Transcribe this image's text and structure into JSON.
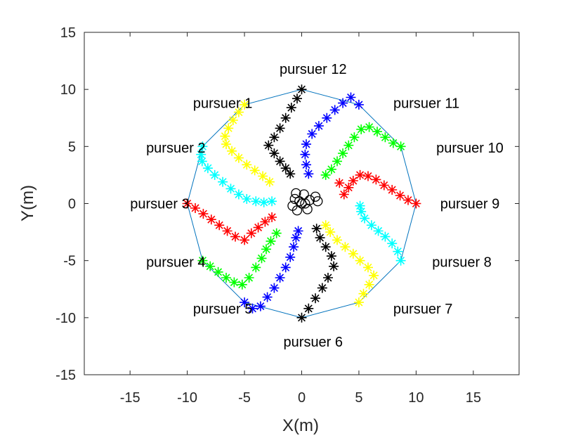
{
  "chart_data": {
    "type": "scatter",
    "title": "",
    "xlabel": "X(m)",
    "ylabel": "Y(m)",
    "xlim": [
      -19,
      19
    ],
    "ylim": [
      -15,
      15
    ],
    "xticks": [
      -15,
      -10,
      -5,
      0,
      5,
      10,
      15
    ],
    "yticks": [
      -15,
      -10,
      -5,
      0,
      5,
      10,
      15
    ],
    "xtick_labels": [
      "-15",
      "-10",
      "-5",
      "0",
      "5",
      "10",
      "15"
    ],
    "ytick_labels": [
      "-15",
      "-10",
      "-5",
      "0",
      "5",
      "10",
      "15"
    ],
    "grid": false,
    "box": true,
    "polygon": {
      "color": "#0072bd",
      "vertices": [
        [
          -5.0,
          8.66
        ],
        [
          -8.66,
          5.0
        ],
        [
          -10.0,
          0.0
        ],
        [
          -8.66,
          -5.0
        ],
        [
          -5.0,
          -8.66
        ],
        [
          0.0,
          -10.0
        ],
        [
          5.0,
          -8.66
        ],
        [
          8.66,
          -5.0
        ],
        [
          10.0,
          0.0
        ],
        [
          8.66,
          5.0
        ],
        [
          5.0,
          8.66
        ],
        [
          0.0,
          10.0
        ]
      ]
    },
    "annotations": [
      {
        "text": "pursuer 1",
        "x": -6.9,
        "y": 8.8
      },
      {
        "text": "pursuer 2",
        "x": -11.0,
        "y": 4.9
      },
      {
        "text": "pursuer 3",
        "x": -12.4,
        "y": 0.0
      },
      {
        "text": "pursuer 4",
        "x": -11.0,
        "y": -5.1
      },
      {
        "text": "pursuer 5",
        "x": -6.9,
        "y": -9.2
      },
      {
        "text": "pursuer 6",
        "x": 1.0,
        "y": -12.1
      },
      {
        "text": "pursuer 7",
        "x": 10.6,
        "y": -9.2
      },
      {
        "text": "pursuer 8",
        "x": 14.0,
        "y": -5.1
      },
      {
        "text": "pursuer 9",
        "x": 14.7,
        "y": 0.0
      },
      {
        "text": "pursuer 10",
        "x": 14.7,
        "y": 4.9
      },
      {
        "text": "pursuer 11",
        "x": 10.9,
        "y": 8.8
      },
      {
        "text": "pursuer 12",
        "x": 1.0,
        "y": 11.8
      }
    ],
    "series": [
      {
        "marker": "asterisk",
        "color": "#ffff00",
        "points": [
          [
            -5.0,
            8.66
          ],
          [
            -5.5,
            8.0
          ],
          [
            -6.0,
            7.3
          ],
          [
            -6.4,
            6.6
          ],
          [
            -6.7,
            5.9
          ],
          [
            -6.6,
            5.2
          ],
          [
            -6.1,
            4.6
          ],
          [
            -5.5,
            4.0
          ],
          [
            -4.8,
            3.4
          ],
          [
            -4.1,
            2.9
          ],
          [
            -3.4,
            2.4
          ],
          [
            -2.8,
            1.9
          ]
        ]
      },
      {
        "marker": "asterisk",
        "color": "#00ffff",
        "points": [
          [
            -8.66,
            5.0
          ],
          [
            -8.8,
            4.3
          ],
          [
            -8.7,
            3.7
          ],
          [
            -8.2,
            3.1
          ],
          [
            -7.6,
            2.5
          ],
          [
            -6.9,
            1.9
          ],
          [
            -6.2,
            1.3
          ],
          [
            -5.5,
            0.8
          ],
          [
            -4.8,
            0.4
          ],
          [
            -4.0,
            0.2
          ],
          [
            -3.3,
            0.1
          ],
          [
            -2.6,
            0.2
          ]
        ]
      },
      {
        "marker": "asterisk",
        "color": "#ff0000",
        "points": [
          [
            -10.0,
            0.0
          ],
          [
            -9.3,
            -0.4
          ],
          [
            -8.6,
            -0.9
          ],
          [
            -7.9,
            -1.4
          ],
          [
            -7.2,
            -1.9
          ],
          [
            -6.5,
            -2.4
          ],
          [
            -5.8,
            -2.9
          ],
          [
            -5.0,
            -3.2
          ],
          [
            -4.4,
            -2.6
          ],
          [
            -3.8,
            -2.1
          ],
          [
            -3.2,
            -1.6
          ],
          [
            -2.6,
            -1.2
          ]
        ]
      },
      {
        "marker": "asterisk",
        "color": "#00ff00",
        "points": [
          [
            -8.66,
            -5.0
          ],
          [
            -8.0,
            -5.5
          ],
          [
            -7.3,
            -6.0
          ],
          [
            -6.6,
            -6.5
          ],
          [
            -5.9,
            -6.9
          ],
          [
            -5.2,
            -7.1
          ],
          [
            -4.6,
            -6.5
          ],
          [
            -4.0,
            -5.6
          ],
          [
            -3.5,
            -4.8
          ],
          [
            -3.1,
            -4.0
          ],
          [
            -2.7,
            -3.3
          ],
          [
            -2.2,
            -2.6
          ]
        ]
      },
      {
        "marker": "asterisk",
        "color": "#0000ff",
        "points": [
          [
            -5.0,
            -8.66
          ],
          [
            -4.3,
            -9.2
          ],
          [
            -3.6,
            -9.0
          ],
          [
            -3.0,
            -8.2
          ],
          [
            -2.4,
            -7.4
          ],
          [
            -1.9,
            -6.5
          ],
          [
            -1.4,
            -5.6
          ],
          [
            -1.0,
            -4.7
          ],
          [
            -0.7,
            -3.8
          ],
          [
            -0.5,
            -3.0
          ],
          [
            -0.3,
            -2.4
          ]
        ]
      },
      {
        "marker": "asterisk",
        "color": "#000000",
        "points": [
          [
            0.0,
            -10.0
          ],
          [
            0.6,
            -9.2
          ],
          [
            1.2,
            -8.3
          ],
          [
            1.8,
            -7.4
          ],
          [
            2.3,
            -6.5
          ],
          [
            2.8,
            -5.5
          ],
          [
            2.6,
            -4.6
          ],
          [
            2.1,
            -3.8
          ],
          [
            1.6,
            -3.0
          ],
          [
            1.3,
            -2.2
          ]
        ]
      },
      {
        "marker": "asterisk",
        "color": "#ffff00",
        "points": [
          [
            5.0,
            -8.66
          ],
          [
            5.4,
            -7.9
          ],
          [
            5.9,
            -7.1
          ],
          [
            6.3,
            -6.3
          ],
          [
            5.8,
            -5.6
          ],
          [
            5.1,
            -5.0
          ],
          [
            4.5,
            -4.4
          ],
          [
            3.8,
            -3.8
          ],
          [
            3.1,
            -3.2
          ],
          [
            2.5,
            -2.5
          ],
          [
            2.1,
            -1.9
          ]
        ]
      },
      {
        "marker": "asterisk",
        "color": "#00ffff",
        "points": [
          [
            8.66,
            -5.0
          ],
          [
            8.4,
            -4.2
          ],
          [
            7.9,
            -3.5
          ],
          [
            7.3,
            -2.9
          ],
          [
            6.7,
            -2.4
          ],
          [
            6.1,
            -1.9
          ],
          [
            5.5,
            -1.3
          ],
          [
            5.2,
            -0.7
          ],
          [
            5.1,
            -0.2
          ]
        ]
      },
      {
        "marker": "asterisk",
        "color": "#ff0000",
        "points": [
          [
            10.0,
            0.0
          ],
          [
            9.3,
            0.3
          ],
          [
            8.6,
            0.7
          ],
          [
            7.9,
            1.2
          ],
          [
            7.2,
            1.6
          ],
          [
            6.5,
            2.1
          ],
          [
            5.8,
            2.4
          ],
          [
            5.1,
            2.5
          ],
          [
            4.5,
            2.0
          ],
          [
            4.1,
            1.4
          ],
          [
            3.7,
            0.8
          ],
          [
            3.3,
            1.8
          ]
        ]
      },
      {
        "marker": "asterisk",
        "color": "#00ff00",
        "points": [
          [
            8.66,
            5.0
          ],
          [
            8.0,
            5.3
          ],
          [
            7.3,
            5.8
          ],
          [
            6.6,
            6.3
          ],
          [
            5.9,
            6.7
          ],
          [
            5.2,
            6.5
          ],
          [
            4.6,
            5.8
          ],
          [
            4.1,
            5.1
          ],
          [
            3.6,
            4.4
          ],
          [
            3.1,
            3.7
          ],
          [
            2.6,
            3.0
          ],
          [
            2.1,
            2.5
          ]
        ]
      },
      {
        "marker": "asterisk",
        "color": "#0000ff",
        "points": [
          [
            5.0,
            8.66
          ],
          [
            4.3,
            9.3
          ],
          [
            3.6,
            8.8
          ],
          [
            2.9,
            8.2
          ],
          [
            2.2,
            7.5
          ],
          [
            1.5,
            6.8
          ],
          [
            0.9,
            6.1
          ],
          [
            0.4,
            5.2
          ],
          [
            0.3,
            4.3
          ],
          [
            0.4,
            3.4
          ],
          [
            0.6,
            2.6
          ]
        ]
      },
      {
        "marker": "asterisk",
        "color": "#000000",
        "points": [
          [
            0.0,
            10.0
          ],
          [
            -0.4,
            9.2
          ],
          [
            -0.9,
            8.4
          ],
          [
            -1.4,
            7.5
          ],
          [
            -1.9,
            6.6
          ],
          [
            -2.4,
            5.8
          ],
          [
            -2.9,
            5.1
          ],
          [
            -2.4,
            4.4
          ],
          [
            -1.9,
            3.7
          ],
          [
            -1.4,
            3.1
          ],
          [
            -1.0,
            2.6
          ]
        ]
      },
      {
        "marker": "circle",
        "color": "#000000",
        "points": [
          [
            0.0,
            0.0
          ],
          [
            -0.6,
            0.4
          ],
          [
            0.7,
            0.3
          ],
          [
            -0.4,
            -0.6
          ],
          [
            0.5,
            -0.5
          ],
          [
            0.2,
            0.8
          ],
          [
            -0.8,
            -0.2
          ],
          [
            1.2,
            0.6
          ],
          [
            1.4,
            0.2
          ],
          [
            -0.2,
            0.2
          ],
          [
            0.3,
            0.0
          ],
          [
            -0.5,
            0.9
          ]
        ]
      }
    ]
  }
}
